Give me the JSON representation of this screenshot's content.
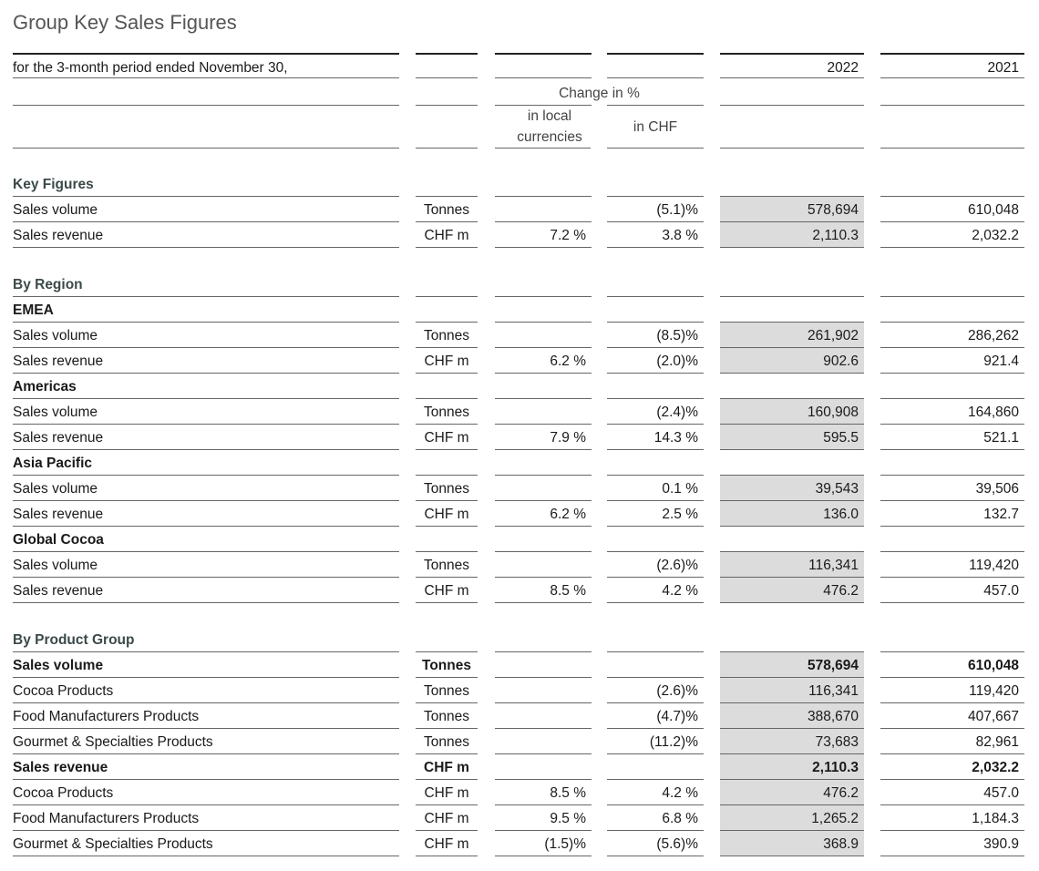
{
  "title": "Group Key Sales Figures",
  "header": {
    "period": "for the 3-month period ended November 30,",
    "year_current": "2022",
    "year_prior": "2021",
    "change": "Change in %",
    "local": "in local currencies",
    "chf": "in CHF"
  },
  "sections": [
    {
      "title": "Key Figures",
      "rows": [
        {
          "label": "Sales volume",
          "unit": "Tonnes",
          "chf": "(5.1)%",
          "current": "578,694",
          "prior": "610,048"
        },
        {
          "label": "Sales revenue",
          "unit": "CHF m",
          "local": "7.2 %",
          "chf": "3.8 %",
          "current": "2,110.3",
          "prior": "2,032.2"
        }
      ]
    },
    {
      "title": "By Region",
      "rows": [
        {
          "label": "EMEA",
          "bold": true
        },
        {
          "label": "Sales volume",
          "unit": "Tonnes",
          "chf": "(8.5)%",
          "current": "261,902",
          "prior": "286,262"
        },
        {
          "label": "Sales revenue",
          "unit": "CHF m",
          "local": "6.2 %",
          "chf": "(2.0)%",
          "current": "902.6",
          "prior": "921.4"
        },
        {
          "label": "Americas",
          "bold": true
        },
        {
          "label": "Sales volume",
          "unit": "Tonnes",
          "chf": "(2.4)%",
          "current": "160,908",
          "prior": "164,860"
        },
        {
          "label": "Sales revenue",
          "unit": "CHF m",
          "local": "7.9 %",
          "chf": "14.3 %",
          "current": "595.5",
          "prior": "521.1"
        },
        {
          "label": "Asia Pacific",
          "bold": true
        },
        {
          "label": "Sales volume",
          "unit": "Tonnes",
          "chf": "0.1 %",
          "current": "39,543",
          "prior": "39,506"
        },
        {
          "label": "Sales revenue",
          "unit": "CHF m",
          "local": "6.2 %",
          "chf": "2.5 %",
          "current": "136.0",
          "prior": "132.7"
        },
        {
          "label": "Global Cocoa",
          "bold": true
        },
        {
          "label": "Sales volume",
          "unit": "Tonnes",
          "chf": "(2.6)%",
          "current": "116,341",
          "prior": "119,420"
        },
        {
          "label": "Sales revenue",
          "unit": "CHF m",
          "local": "8.5 %",
          "chf": "4.2 %",
          "current": "476.2",
          "prior": "457.0"
        }
      ]
    },
    {
      "title": "By Product Group",
      "rows": [
        {
          "label": "Sales volume",
          "unit": "Tonnes",
          "current": "578,694",
          "prior": "610,048",
          "bold": true
        },
        {
          "label": "Cocoa Products",
          "unit": "Tonnes",
          "chf": "(2.6)%",
          "current": "116,341",
          "prior": "119,420"
        },
        {
          "label": "Food Manufacturers Products",
          "unit": "Tonnes",
          "chf": "(4.7)%",
          "current": "388,670",
          "prior": "407,667"
        },
        {
          "label": "Gourmet & Specialties Products",
          "unit": "Tonnes",
          "chf": "(11.2)%",
          "current": "73,683",
          "prior": "82,961"
        },
        {
          "label": "Sales revenue",
          "unit": "CHF m",
          "current": "2,110.3",
          "prior": "2,032.2",
          "bold": true
        },
        {
          "label": "Cocoa Products",
          "unit": "CHF m",
          "local": "8.5 %",
          "chf": "4.2 %",
          "current": "476.2",
          "prior": "457.0"
        },
        {
          "label": "Food Manufacturers Products",
          "unit": "CHF m",
          "local": "9.5 %",
          "chf": "6.8 %",
          "current": "1,265.2",
          "prior": "1,184.3"
        },
        {
          "label": "Gourmet & Specialties Products",
          "unit": "CHF m",
          "local": "(1.5)%",
          "chf": "(5.6)%",
          "current": "368.9",
          "prior": "390.9"
        }
      ]
    }
  ]
}
